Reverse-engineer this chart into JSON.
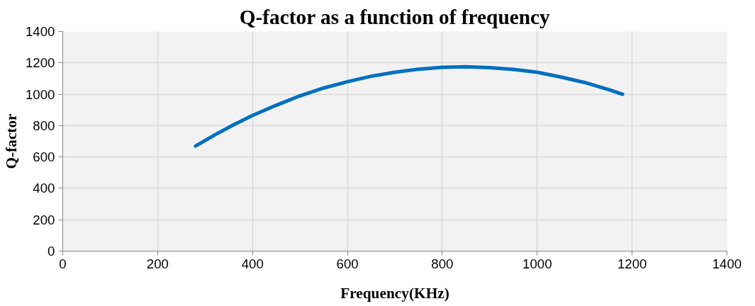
{
  "chart_data": {
    "type": "line",
    "title": "Q-factor as a function of frequency",
    "xlabel": "Frequency(KHz)",
    "ylabel": "Q-factor",
    "x": [
      280,
      320,
      360,
      400,
      450,
      500,
      550,
      600,
      650,
      700,
      750,
      800,
      850,
      900,
      950,
      1000,
      1050,
      1100,
      1150,
      1180
    ],
    "series": [
      {
        "color": "#0070c0",
        "values": [
          670,
          740,
          805,
          865,
          930,
          990,
          1040,
          1080,
          1115,
          1140,
          1160,
          1172,
          1175,
          1170,
          1158,
          1140,
          1110,
          1075,
          1030,
          1000
        ]
      }
    ],
    "xlim": [
      0,
      1400
    ],
    "xticks": [
      0,
      200,
      400,
      600,
      800,
      1000,
      1200,
      1400
    ],
    "ylim": [
      0,
      1400
    ],
    "yticks": [
      0,
      200,
      400,
      600,
      800,
      1000,
      1200,
      1400
    ],
    "grid": true,
    "marker": "none",
    "line_style": "solid"
  }
}
